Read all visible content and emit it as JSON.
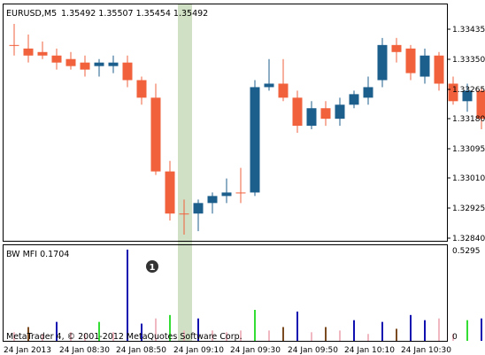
{
  "header": {
    "symbol_tf": "EURUSD,M5",
    "ohlc": "1.35492 1.35507 1.35454 1.35492"
  },
  "price_axis": {
    "labels": [
      "1.33435",
      "1.33350",
      "1.33265",
      "1.33180",
      "1.33095",
      "1.33010",
      "1.32925",
      "1.32840"
    ]
  },
  "indicator": {
    "title": "BW MFI 0.1704",
    "axis_top": "0.5295",
    "axis_bottom": "0"
  },
  "time_axis": {
    "labels": [
      "24 Jan 2013",
      "24 Jan 08:30",
      "24 Jan 08:50",
      "24 Jan 09:10",
      "24 Jan 09:30",
      "24 Jan 09:50",
      "24 Jan 10:10",
      "24 Jan 10:30"
    ]
  },
  "highlight_marker": "1",
  "copyright": "MetaTrader 4, © 2001-2012 MetaQuotes Software Corp.",
  "colors": {
    "bull": "#1c5e8c",
    "bear": "#f0613c",
    "mfi_blue": "#1010b0",
    "mfi_green": "#33dd33",
    "mfi_pink": "#f0b8c0",
    "mfi_brown": "#7a4a20",
    "highlight": "#cfe0c4"
  },
  "chart_data": {
    "type": "candlestick",
    "price_range": [
      1.3284,
      1.3348
    ],
    "candles": [
      {
        "o": 1.3339,
        "h": 1.3345,
        "l": 1.3336,
        "c": 1.3339
      },
      {
        "o": 1.3338,
        "h": 1.3342,
        "l": 1.3334,
        "c": 1.3336
      },
      {
        "o": 1.3337,
        "h": 1.334,
        "l": 1.3335,
        "c": 1.3336
      },
      {
        "o": 1.3336,
        "h": 1.3338,
        "l": 1.3332,
        "c": 1.3334
      },
      {
        "o": 1.3335,
        "h": 1.3337,
        "l": 1.3332,
        "c": 1.3333
      },
      {
        "o": 1.3334,
        "h": 1.3336,
        "l": 1.333,
        "c": 1.3332
      },
      {
        "o": 1.3333,
        "h": 1.3335,
        "l": 1.333,
        "c": 1.3334
      },
      {
        "o": 1.3333,
        "h": 1.3336,
        "l": 1.3331,
        "c": 1.3334
      },
      {
        "o": 1.3334,
        "h": 1.3336,
        "l": 1.3327,
        "c": 1.3329
      },
      {
        "o": 1.3329,
        "h": 1.333,
        "l": 1.3322,
        "c": 1.3324
      },
      {
        "o": 1.3324,
        "h": 1.3328,
        "l": 1.3302,
        "c": 1.3303
      },
      {
        "o": 1.3303,
        "h": 1.3306,
        "l": 1.3289,
        "c": 1.3291
      },
      {
        "o": 1.3291,
        "h": 1.3295,
        "l": 1.3285,
        "c": 1.3291
      },
      {
        "o": 1.3291,
        "h": 1.3295,
        "l": 1.3286,
        "c": 1.3294
      },
      {
        "o": 1.3294,
        "h": 1.3297,
        "l": 1.3291,
        "c": 1.3296
      },
      {
        "o": 1.3296,
        "h": 1.3301,
        "l": 1.3294,
        "c": 1.3297
      },
      {
        "o": 1.3297,
        "h": 1.3304,
        "l": 1.3294,
        "c": 1.3297
      },
      {
        "o": 1.3297,
        "h": 1.3329,
        "l": 1.3296,
        "c": 1.3327
      },
      {
        "o": 1.3327,
        "h": 1.3335,
        "l": 1.3326,
        "c": 1.3328
      },
      {
        "o": 1.3328,
        "h": 1.3335,
        "l": 1.3323,
        "c": 1.3324
      },
      {
        "o": 1.3324,
        "h": 1.3326,
        "l": 1.3314,
        "c": 1.3316
      },
      {
        "o": 1.3316,
        "h": 1.3323,
        "l": 1.3315,
        "c": 1.3321
      },
      {
        "o": 1.3321,
        "h": 1.3323,
        "l": 1.3316,
        "c": 1.3318
      },
      {
        "o": 1.3318,
        "h": 1.3324,
        "l": 1.3316,
        "c": 1.3322
      },
      {
        "o": 1.3322,
        "h": 1.3326,
        "l": 1.3321,
        "c": 1.3325
      },
      {
        "o": 1.3324,
        "h": 1.333,
        "l": 1.3322,
        "c": 1.3327
      },
      {
        "o": 1.3329,
        "h": 1.3341,
        "l": 1.3327,
        "c": 1.3339
      },
      {
        "o": 1.3339,
        "h": 1.3341,
        "l": 1.3334,
        "c": 1.3337
      },
      {
        "o": 1.3338,
        "h": 1.3339,
        "l": 1.3329,
        "c": 1.3331
      },
      {
        "o": 1.333,
        "h": 1.3338,
        "l": 1.3328,
        "c": 1.3336
      },
      {
        "o": 1.3336,
        "h": 1.3337,
        "l": 1.3326,
        "c": 1.3328
      },
      {
        "o": 1.3328,
        "h": 1.333,
        "l": 1.3322,
        "c": 1.3323
      },
      {
        "o": 1.3323,
        "h": 1.3328,
        "l": 1.332,
        "c": 1.3326
      },
      {
        "o": 1.3326,
        "h": 1.3327,
        "l": 1.3315,
        "c": 1.3318
      }
    ],
    "highlight_index": 12,
    "mfi": {
      "range": [
        0,
        0.5295
      ],
      "bars": [
        {
          "v": 0.05,
          "c": "pink"
        },
        {
          "v": 0.08,
          "c": "brown"
        },
        {
          "v": 0.04,
          "c": "pink"
        },
        {
          "v": 0.11,
          "c": "blue"
        },
        {
          "v": 0.05,
          "c": "pink"
        },
        {
          "v": 0.04,
          "c": "pink"
        },
        {
          "v": 0.11,
          "c": "green"
        },
        {
          "v": 0.05,
          "c": "pink"
        },
        {
          "v": 0.5295,
          "c": "blue"
        },
        {
          "v": 0.1,
          "c": "blue"
        },
        {
          "v": 0.13,
          "c": "pink"
        },
        {
          "v": 0.15,
          "c": "green"
        },
        {
          "v": 0.06,
          "c": "pink"
        },
        {
          "v": 0.13,
          "c": "blue"
        },
        {
          "v": 0.06,
          "c": "pink"
        },
        {
          "v": 0.05,
          "c": "pink"
        },
        {
          "v": 0.06,
          "c": "pink"
        },
        {
          "v": 0.18,
          "c": "green"
        },
        {
          "v": 0.06,
          "c": "pink"
        },
        {
          "v": 0.08,
          "c": "brown"
        },
        {
          "v": 0.17,
          "c": "blue"
        },
        {
          "v": 0.05,
          "c": "pink"
        },
        {
          "v": 0.08,
          "c": "brown"
        },
        {
          "v": 0.06,
          "c": "pink"
        },
        {
          "v": 0.12,
          "c": "blue"
        },
        {
          "v": 0.04,
          "c": "pink"
        },
        {
          "v": 0.11,
          "c": "blue"
        },
        {
          "v": 0.07,
          "c": "brown"
        },
        {
          "v": 0.15,
          "c": "blue"
        },
        {
          "v": 0.12,
          "c": "blue"
        },
        {
          "v": 0.13,
          "c": "pink"
        },
        {
          "v": 0.04,
          "c": "pink"
        },
        {
          "v": 0.12,
          "c": "green"
        },
        {
          "v": 0.13,
          "c": "blue"
        }
      ]
    }
  }
}
